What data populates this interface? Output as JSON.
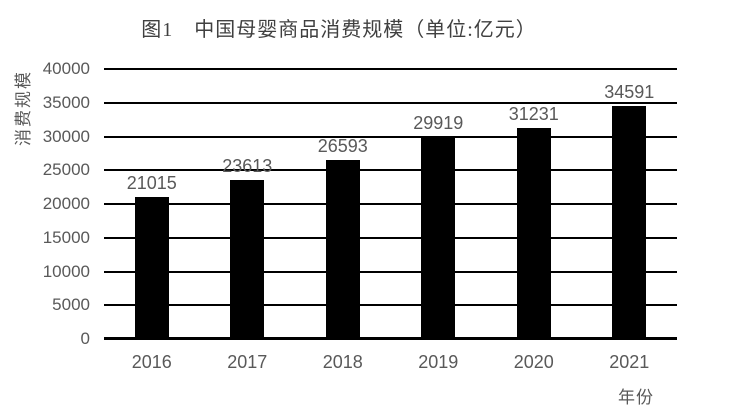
{
  "chart_data": {
    "type": "bar",
    "title": "图1　中国母婴商品消费规模（单位:亿元）",
    "xlabel": "年份",
    "ylabel": "消费规模",
    "categories": [
      "2016",
      "2017",
      "2018",
      "2019",
      "2020",
      "2021"
    ],
    "values": [
      21015,
      23613,
      26593,
      29919,
      31231,
      34591
    ],
    "data_labels_shown": true,
    "ylim": [
      0,
      40000
    ],
    "ytick_step": 5000,
    "yticks": [
      0,
      5000,
      10000,
      15000,
      20000,
      25000,
      30000,
      35000,
      40000
    ],
    "grid": "on",
    "legend": "none",
    "colors": {
      "bar": "#000000",
      "gridline": "#000000",
      "axis_line": "#000000",
      "tick_label": "#595959",
      "data_label": "#595959",
      "title": "#404040"
    }
  }
}
